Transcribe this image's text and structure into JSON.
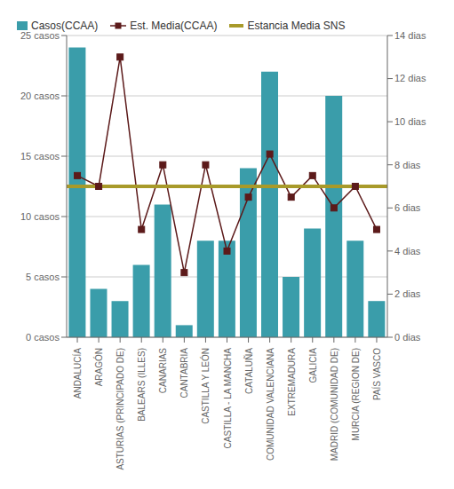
{
  "chart_data": {
    "type": "bar",
    "categories": [
      "ANDALUCÍA",
      "ARAGÓN",
      "ASTURIAS (PRINCIPADO DE)",
      "BALEARS (ILLES)",
      "CANARIAS",
      "CANTABRIA",
      "CASTILLA Y LEÓN",
      "CASTILLA - LA MANCHA",
      "CATALUÑA",
      "COMUNIDAD VALENCIANA",
      "EXTREMADURA",
      "GALICIA",
      "MADRID (COMUNIDAD DE)",
      "MURCIA (REGION DE)",
      "PAÍS VASCO"
    ],
    "series": [
      {
        "name": "Casos(CCAA)",
        "type": "bar",
        "color": "#3a9daa",
        "values": [
          24,
          4,
          3,
          6,
          11,
          1,
          8,
          8,
          14,
          22,
          5,
          9,
          20,
          8,
          3
        ]
      },
      {
        "name": "Est.  Media(CCAA)",
        "type": "line",
        "axis": "y2",
        "color": "#5c1a1a",
        "marker": "square",
        "values": [
          7.5,
          7.0,
          13.0,
          5.0,
          8.0,
          3.0,
          8.0,
          4.0,
          6.5,
          8.5,
          6.5,
          7.5,
          6.0,
          7.0,
          5.0
        ]
      },
      {
        "name": "Estancia Media SNS",
        "type": "hline",
        "axis": "y2",
        "color": "#a89a2a",
        "value": 7.0
      }
    ],
    "ylim": [
      0,
      25
    ],
    "yticks": [
      {
        "value": 0,
        "label": "0 casos"
      },
      {
        "value": 5,
        "label": "5 casos"
      },
      {
        "value": 10,
        "label": "10 casos"
      },
      {
        "value": 15,
        "label": "15 casos"
      },
      {
        "value": 20,
        "label": "20 casos"
      },
      {
        "value": 25,
        "label": "25 casos"
      }
    ],
    "y2lim": [
      0,
      14
    ],
    "y2ticks": [
      {
        "value": 0,
        "label": "0 dias"
      },
      {
        "value": 2,
        "label": "2 dias"
      },
      {
        "value": 4,
        "label": "4 dias"
      },
      {
        "value": 6,
        "label": "6 dias"
      },
      {
        "value": 8,
        "label": "8 dias"
      },
      {
        "value": 10,
        "label": "10 dias"
      },
      {
        "value": 12,
        "label": "12 dias"
      },
      {
        "value": 14,
        "label": "14 dias"
      }
    ],
    "grid": true,
    "legend": "upper left"
  }
}
